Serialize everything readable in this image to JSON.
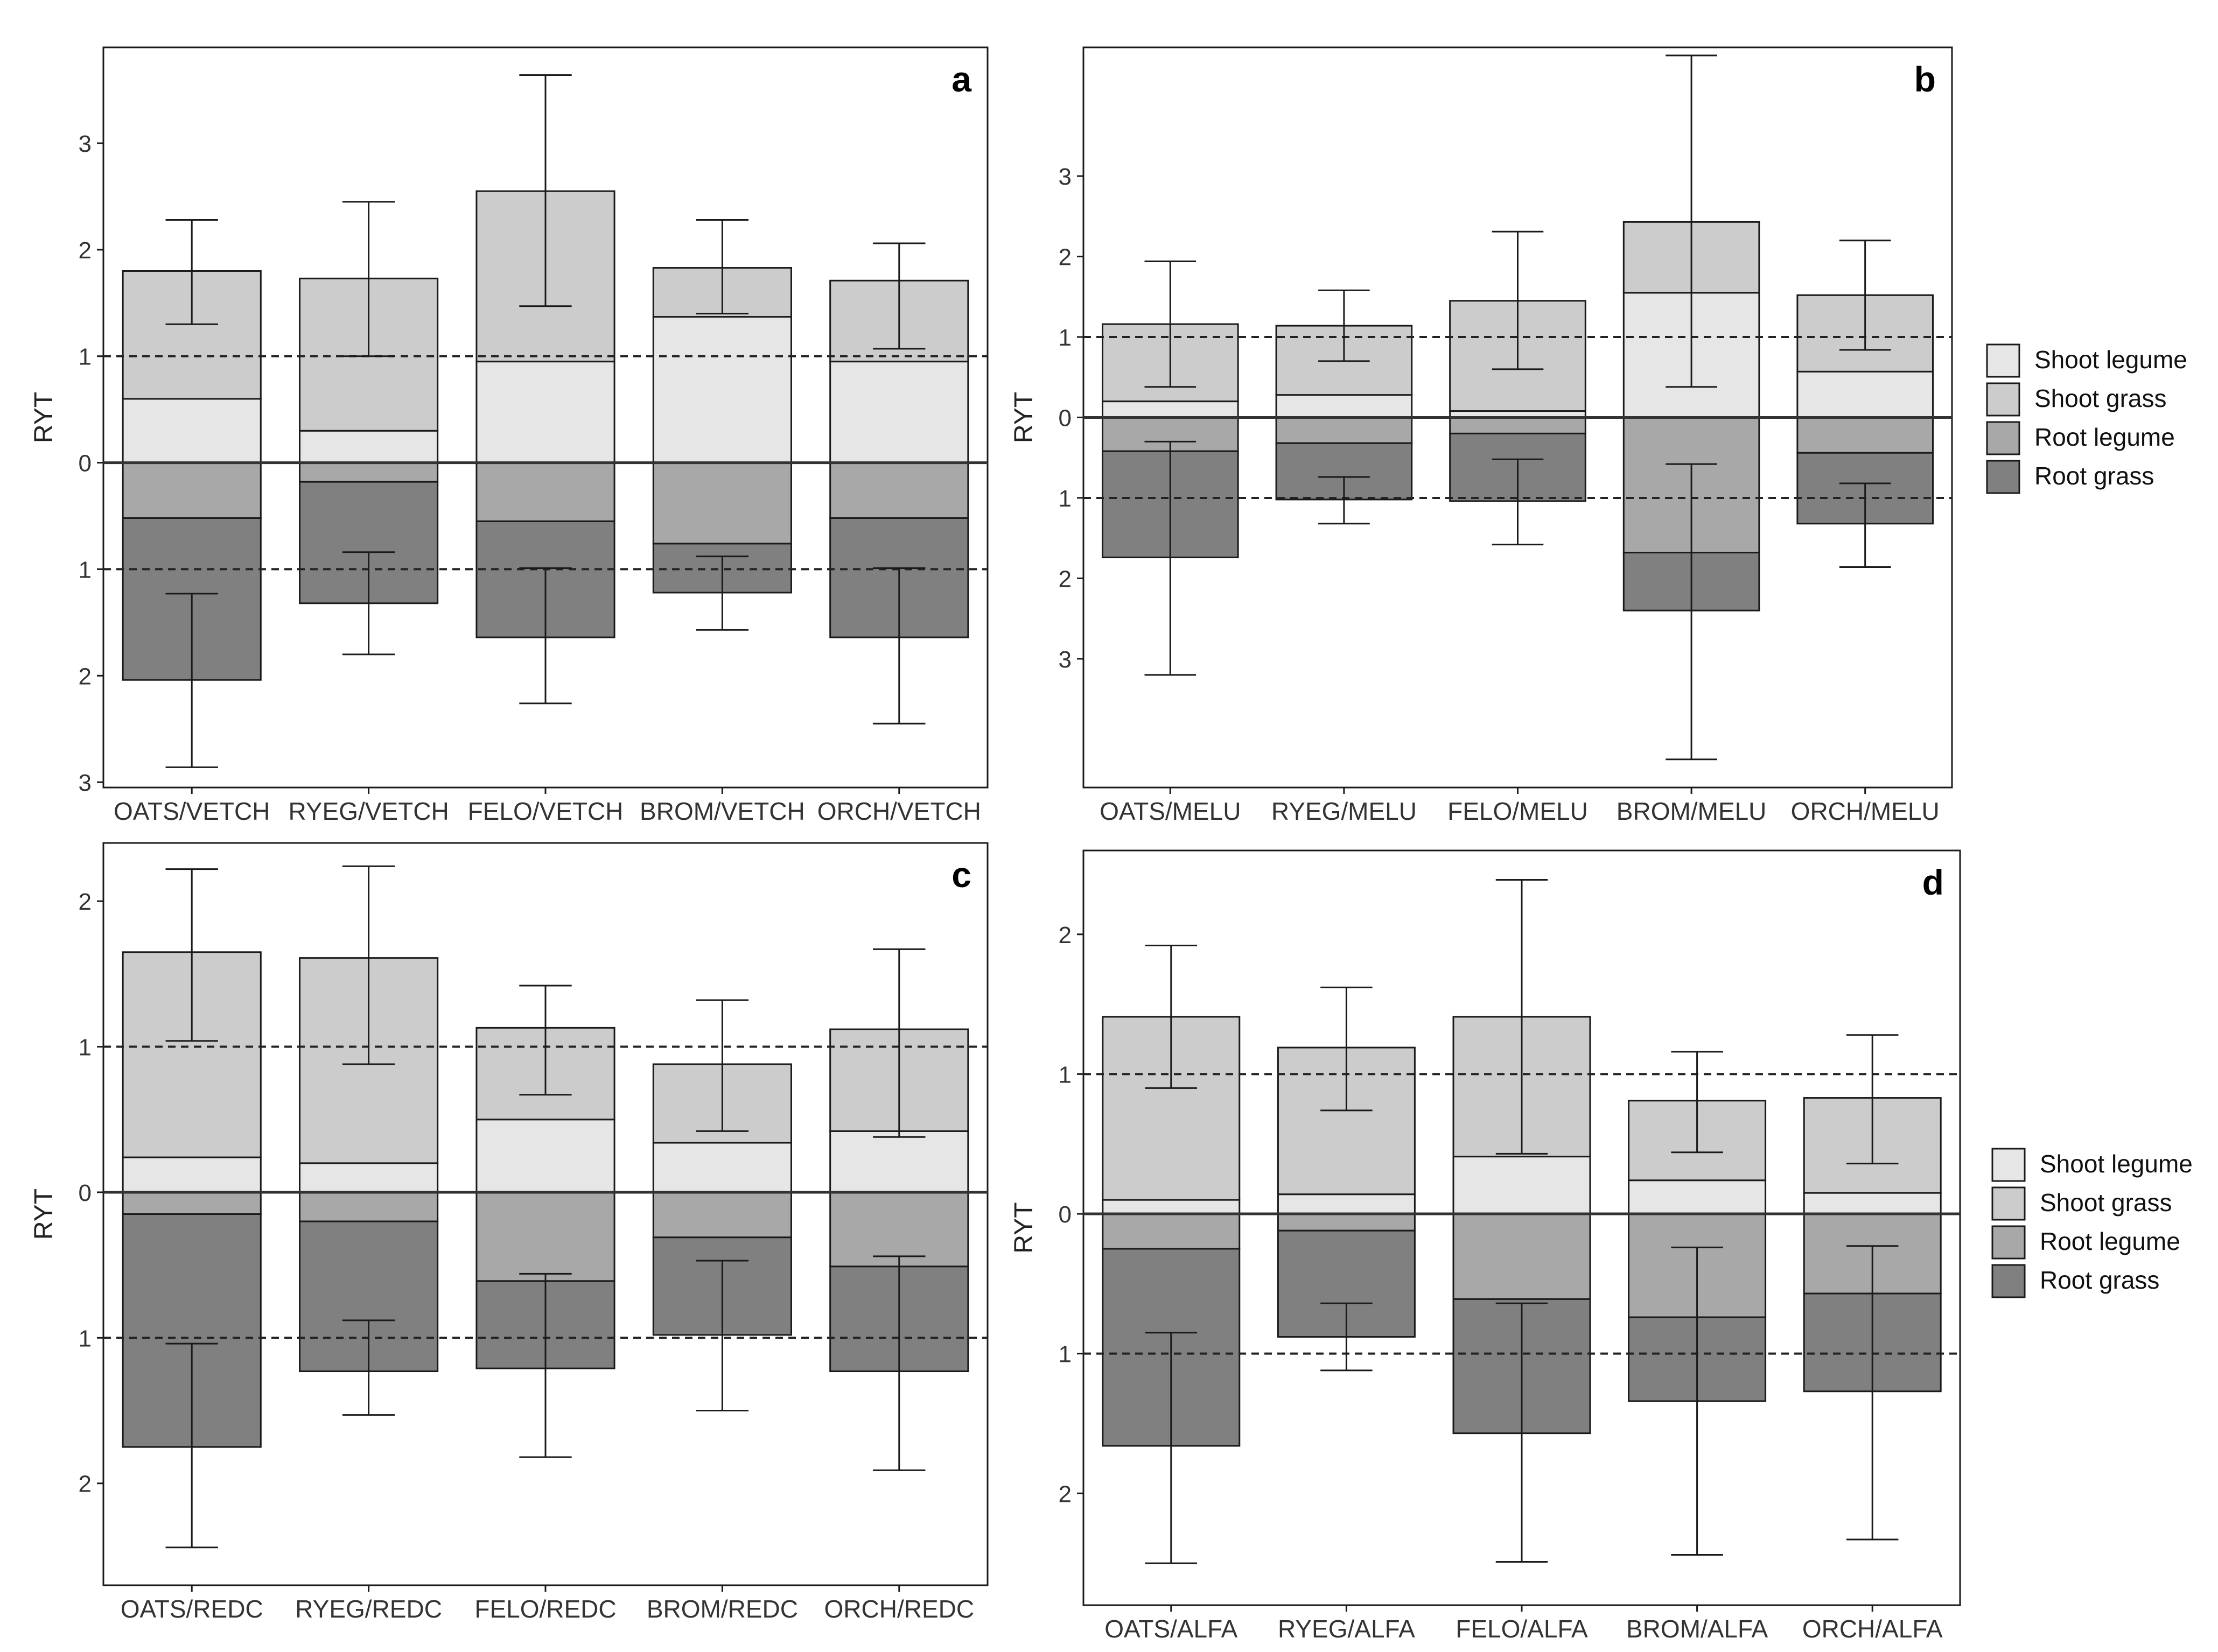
{
  "figure": {
    "legend": {
      "items": [
        {
          "key": "shoot_legume",
          "label": "Shoot legume"
        },
        {
          "key": "shoot_grass",
          "label": "Shoot grass"
        },
        {
          "key": "root_legume",
          "label": "Root legume"
        },
        {
          "key": "root_grass",
          "label": "Root grass"
        }
      ]
    },
    "colors": {
      "shoot_legume": "#e6e6e6",
      "shoot_grass": "#cccccc",
      "root_legume": "#a8a8a8",
      "root_grass": "#808080",
      "stroke": "#1a1a1a"
    }
  },
  "chart_data": [
    {
      "type": "bar",
      "panel": "a",
      "ylabel": "RYT",
      "ylim": [
        -3.05,
        3.9
      ],
      "yticks": [
        -3,
        -2,
        -1,
        0,
        1,
        2,
        3
      ],
      "yticklabels": [
        "3",
        "2",
        "1",
        "0",
        "1",
        "2",
        "3"
      ],
      "reference_lines": [
        1,
        -1
      ],
      "categories": [
        "OATS/VETCH",
        "RYEG/VETCH",
        "FELO/VETCH",
        "BROM/VETCH",
        "ORCH/VETCH"
      ],
      "series": [
        {
          "name": "Shoot legume",
          "values": [
            0.6,
            0.3,
            0.95,
            1.37,
            0.95
          ]
        },
        {
          "name": "Shoot grass",
          "values": [
            1.2,
            1.43,
            1.6,
            0.46,
            0.76
          ]
        },
        {
          "name": "Root legume",
          "values": [
            0.52,
            0.18,
            0.55,
            0.76,
            0.52
          ]
        },
        {
          "name": "Root grass",
          "values": [
            1.52,
            1.14,
            1.09,
            0.46,
            1.12
          ]
        }
      ],
      "shoot_error": [
        [
          1.3,
          2.28
        ],
        [
          1.0,
          2.45
        ],
        [
          1.47,
          3.64
        ],
        [
          1.4,
          2.28
        ],
        [
          1.07,
          2.06
        ]
      ],
      "root_error": [
        [
          1.23,
          2.86
        ],
        [
          0.84,
          1.8
        ],
        [
          0.99,
          2.26
        ],
        [
          0.88,
          1.57
        ],
        [
          0.99,
          2.45
        ]
      ]
    },
    {
      "type": "bar",
      "panel": "b",
      "ylabel": "RYT",
      "ylim": [
        -4.6,
        4.6
      ],
      "yticks": [
        -3,
        -2,
        -1,
        0,
        1,
        2,
        3
      ],
      "yticklabels": [
        "3",
        "2",
        "1",
        "0",
        "1",
        "2",
        "3"
      ],
      "reference_lines": [
        1,
        -1
      ],
      "categories": [
        "OATS/MELU",
        "RYEG/MELU",
        "FELO/MELU",
        "BROM/MELU",
        "ORCH/MELU"
      ],
      "series": [
        {
          "name": "Shoot legume",
          "values": [
            0.2,
            0.28,
            0.08,
            1.55,
            0.57
          ]
        },
        {
          "name": "Shoot grass",
          "values": [
            0.96,
            0.86,
            1.37,
            0.88,
            0.95
          ]
        },
        {
          "name": "Root legume",
          "values": [
            0.42,
            0.32,
            0.2,
            1.68,
            0.44
          ]
        },
        {
          "name": "Root grass",
          "values": [
            1.32,
            0.7,
            0.84,
            0.72,
            0.88
          ]
        }
      ],
      "shoot_error": [
        [
          0.38,
          1.94
        ],
        [
          0.7,
          1.58
        ],
        [
          0.6,
          2.31
        ],
        [
          0.38,
          4.5
        ],
        [
          0.84,
          2.2
        ]
      ],
      "root_error": [
        [
          0.3,
          3.2
        ],
        [
          0.74,
          1.32
        ],
        [
          0.52,
          1.58
        ],
        [
          0.58,
          4.25
        ],
        [
          0.82,
          1.86
        ]
      ]
    },
    {
      "type": "bar",
      "panel": "c",
      "ylabel": "RYT",
      "ylim": [
        -2.7,
        2.4
      ],
      "yticks": [
        -2,
        -1,
        0,
        1,
        2
      ],
      "yticklabels": [
        "2",
        "1",
        "0",
        "1",
        "2"
      ],
      "reference_lines": [
        1,
        -1
      ],
      "categories": [
        "OATS/REDC",
        "RYEG/REDC",
        "FELO/REDC",
        "BROM/REDC",
        "ORCH/REDC"
      ],
      "series": [
        {
          "name": "Shoot legume",
          "values": [
            0.24,
            0.2,
            0.5,
            0.34,
            0.42
          ]
        },
        {
          "name": "Shoot grass",
          "values": [
            1.41,
            1.41,
            0.63,
            0.54,
            0.7
          ]
        },
        {
          "name": "Root legume",
          "values": [
            0.15,
            0.2,
            0.61,
            0.31,
            0.51
          ]
        },
        {
          "name": "Root grass",
          "values": [
            1.6,
            1.03,
            0.6,
            0.67,
            0.72
          ]
        }
      ],
      "shoot_error": [
        [
          1.04,
          2.22
        ],
        [
          0.88,
          2.24
        ],
        [
          0.67,
          1.42
        ],
        [
          0.42,
          1.32
        ],
        [
          0.38,
          1.67
        ]
      ],
      "root_error": [
        [
          1.04,
          2.44
        ],
        [
          0.88,
          1.53
        ],
        [
          0.56,
          1.82
        ],
        [
          0.47,
          1.5
        ],
        [
          0.44,
          1.91
        ]
      ]
    },
    {
      "type": "bar",
      "panel": "d",
      "ylabel": "RYT",
      "ylim": [
        -2.8,
        2.6
      ],
      "yticks": [
        -2,
        -1,
        0,
        1,
        2
      ],
      "yticklabels": [
        "2",
        "1",
        "0",
        "1",
        "2"
      ],
      "reference_lines": [
        1,
        -1
      ],
      "categories": [
        "OATS/ALFA",
        "RYEG/ALFA",
        "FELO/ALFA",
        "BROM/ALFA",
        "ORCH/ALFA"
      ],
      "series": [
        {
          "name": "Shoot legume",
          "values": [
            0.1,
            0.14,
            0.41,
            0.24,
            0.15
          ]
        },
        {
          "name": "Shoot grass",
          "values": [
            1.31,
            1.05,
            1.0,
            0.57,
            0.68
          ]
        },
        {
          "name": "Root legume",
          "values": [
            0.25,
            0.12,
            0.61,
            0.74,
            0.57
          ]
        },
        {
          "name": "Root grass",
          "values": [
            1.41,
            0.76,
            0.96,
            0.6,
            0.7
          ]
        }
      ],
      "shoot_error": [
        [
          0.9,
          1.92
        ],
        [
          0.74,
          1.62
        ],
        [
          0.43,
          2.39
        ],
        [
          0.44,
          1.16
        ],
        [
          0.36,
          1.28
        ]
      ],
      "root_error": [
        [
          0.85,
          2.5
        ],
        [
          0.64,
          1.12
        ],
        [
          0.64,
          2.49
        ],
        [
          0.24,
          2.44
        ],
        [
          0.23,
          2.33
        ]
      ]
    }
  ],
  "panel_letters": [
    "a",
    "b",
    "c",
    "d"
  ]
}
